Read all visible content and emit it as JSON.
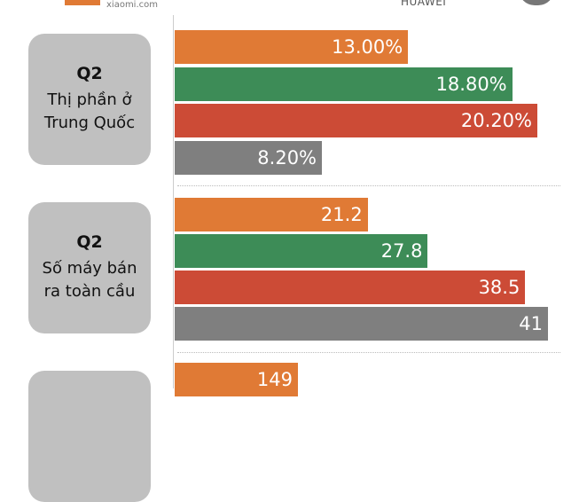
{
  "header": {
    "brands": [
      "xiaomi.com",
      "HUAWEI"
    ]
  },
  "colors": {
    "xiaomi": "#e07a35",
    "green": "#3d8c57",
    "red": "#cc4b36",
    "gray": "#7f7f7f"
  },
  "chart_data": {
    "type": "bar",
    "groups": [
      {
        "quarter": "Q2",
        "title_lines": [
          "Thị phần ở",
          "Trung Quốc"
        ],
        "labels": [
          "13.00%",
          "18.80%",
          "20.20%",
          "8.20%"
        ],
        "values": [
          13.0,
          18.8,
          20.2,
          8.2
        ],
        "max": 20.2
      },
      {
        "quarter": "Q2",
        "title_lines": [
          "Số máy bán",
          "ra toàn cầu"
        ],
        "labels": [
          "21.2",
          "27.8",
          "38.5",
          "41"
        ],
        "values": [
          21.2,
          27.8,
          38.5,
          41
        ],
        "max": 41
      },
      {
        "quarter": "",
        "title_lines": [],
        "labels": [
          "149"
        ],
        "values": [
          149
        ],
        "max": 149
      }
    ]
  }
}
